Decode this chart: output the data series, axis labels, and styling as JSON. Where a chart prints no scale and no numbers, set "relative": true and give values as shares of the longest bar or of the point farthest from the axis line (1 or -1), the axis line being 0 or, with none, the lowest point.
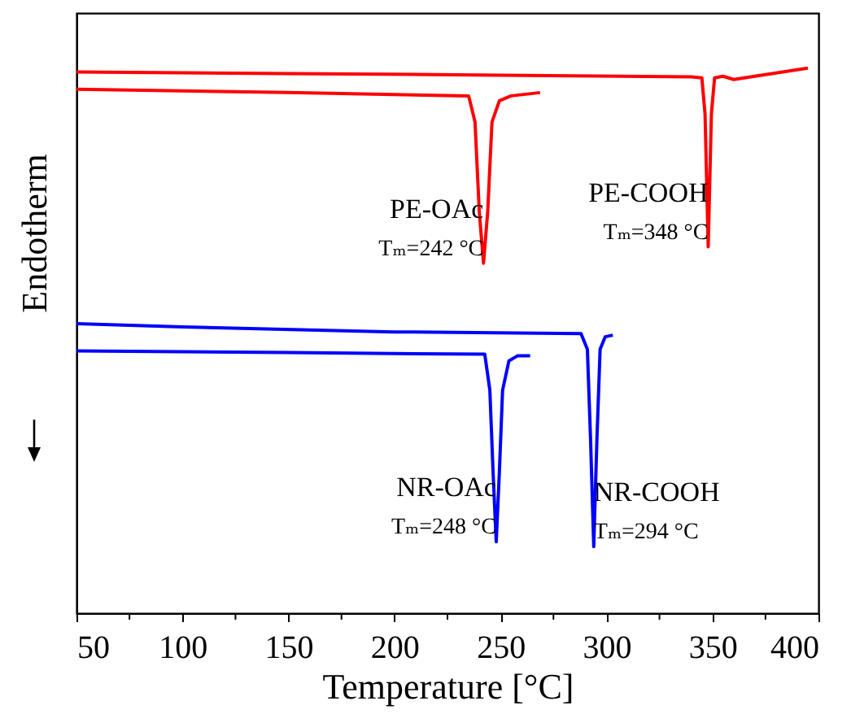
{
  "chart_data": {
    "type": "line",
    "relative": true,
    "xlabel": "Temperature [°C]",
    "ylabel": "Endotherm",
    "xlim": [
      50,
      400
    ],
    "xticks": [
      50,
      {
        "value": 75,
        "label": null
      },
      100,
      {
        "value": 125,
        "label": null
      },
      150,
      {
        "value": 175,
        "label": null
      },
      200,
      {
        "value": 225,
        "label": null
      },
      250,
      {
        "value": 275,
        "label": null
      },
      300,
      {
        "value": 325,
        "label": null
      },
      350,
      {
        "value": 375,
        "label": null
      },
      400
    ],
    "grid": false,
    "marker": "none",
    "line_style": "solid",
    "series": [
      {
        "name": "PE-COOH",
        "color": "#ff0000",
        "x": [
          50,
          150,
          250,
          340,
          345,
          346.5,
          348,
          349.5,
          351,
          355,
          360,
          370,
          385,
          395
        ],
        "values": [
          0.993,
          0.99,
          0.987,
          0.984,
          0.982,
          0.916,
          0.672,
          0.916,
          0.982,
          0.985,
          0.979,
          0.985,
          0.994,
          1
        ]
      },
      {
        "name": "PE-OAc",
        "color": "#ff0000",
        "x": [
          50,
          150,
          235,
          238,
          240,
          242,
          244,
          246,
          249.5,
          255,
          268.7
        ],
        "values": [
          0.961,
          0.955,
          0.949,
          0.901,
          0.737,
          0.642,
          0.737,
          0.901,
          0.94,
          0.949,
          0.955
        ]
      },
      {
        "name": "NR-COOH",
        "color": "#0000ff",
        "x": [
          50,
          100,
          200,
          288,
          291,
          292.5,
          294,
          295.5,
          297,
          299.4,
          303
        ],
        "values": [
          0.531,
          0.525,
          0.516,
          0.513,
          0.484,
          0.319,
          0.122,
          0.319,
          0.484,
          0.507,
          0.51
        ]
      },
      {
        "name": "NR-OAc",
        "color": "#0000ff",
        "x": [
          50,
          150,
          242.6,
          245,
          246.5,
          248,
          249.5,
          251,
          254,
          258,
          264
        ],
        "values": [
          0.481,
          0.478,
          0.475,
          0.409,
          0.26,
          0.131,
          0.26,
          0.409,
          0.463,
          0.472,
          0.472
        ]
      }
    ],
    "annotations": [
      {
        "text": "Tₘ=348 °C",
        "x": 348,
        "y": 0.672
      },
      {
        "text": "Tₘ=242 °C",
        "x": 242,
        "y": 0.642
      },
      {
        "text": "Tₘ=294 °C",
        "x": 294,
        "y": 0.122
      },
      {
        "text": "Tₘ=248 °C",
        "x": 248,
        "y": 0.131
      }
    ]
  }
}
